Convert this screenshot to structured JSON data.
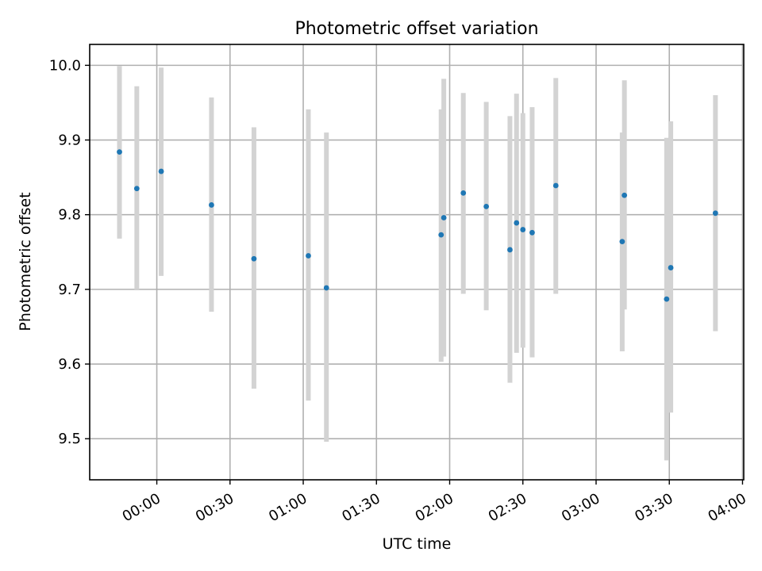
{
  "chart_data": {
    "type": "scatter",
    "title": "Photometric offset variation",
    "xlabel": "UTC time",
    "ylabel": "Photometric offset",
    "x_unit": "minutes after 00:00 UTC",
    "xlim": [
      -27.5,
      240.5
    ],
    "ylim": [
      9.445,
      10.028
    ],
    "xticks": [
      {
        "value": 0,
        "label": "00:00"
      },
      {
        "value": 30,
        "label": "00:30"
      },
      {
        "value": 60,
        "label": "01:00"
      },
      {
        "value": 90,
        "label": "01:30"
      },
      {
        "value": 120,
        "label": "02:00"
      },
      {
        "value": 150,
        "label": "02:30"
      },
      {
        "value": 180,
        "label": "03:00"
      },
      {
        "value": 210,
        "label": "03:30"
      },
      {
        "value": 240,
        "label": "04:00"
      }
    ],
    "yticks": [
      {
        "value": 9.5,
        "label": "9.5"
      },
      {
        "value": 9.6,
        "label": "9.6"
      },
      {
        "value": 9.7,
        "label": "9.7"
      },
      {
        "value": 9.8,
        "label": "9.8"
      },
      {
        "value": 9.9,
        "label": "9.9"
      },
      {
        "value": 10.0,
        "label": "10.0"
      }
    ],
    "grid": true,
    "x_tick_rotation": -30,
    "point_color": "#1f77b4",
    "errorbar_color": "#d3d3d3",
    "points": [
      {
        "x": -15.3,
        "y": 9.884,
        "low": 9.768,
        "high": 9.999
      },
      {
        "x": -8.2,
        "y": 9.835,
        "low": 9.7,
        "high": 9.972
      },
      {
        "x": 1.8,
        "y": 9.858,
        "low": 9.718,
        "high": 9.997
      },
      {
        "x": 22.4,
        "y": 9.813,
        "low": 9.67,
        "high": 9.957
      },
      {
        "x": 39.8,
        "y": 9.741,
        "low": 9.567,
        "high": 9.917
      },
      {
        "x": 62.1,
        "y": 9.745,
        "low": 9.551,
        "high": 9.941
      },
      {
        "x": 69.5,
        "y": 9.702,
        "low": 9.496,
        "high": 9.91
      },
      {
        "x": 116.5,
        "y": 9.773,
        "low": 9.603,
        "high": 9.941
      },
      {
        "x": 117.6,
        "y": 9.796,
        "low": 9.61,
        "high": 9.982
      },
      {
        "x": 125.6,
        "y": 9.829,
        "low": 9.694,
        "high": 9.963
      },
      {
        "x": 135.0,
        "y": 9.811,
        "low": 9.672,
        "high": 9.951
      },
      {
        "x": 144.7,
        "y": 9.753,
        "low": 9.575,
        "high": 9.932
      },
      {
        "x": 147.4,
        "y": 9.789,
        "low": 9.615,
        "high": 9.962
      },
      {
        "x": 150.0,
        "y": 9.78,
        "low": 9.622,
        "high": 9.936
      },
      {
        "x": 153.8,
        "y": 9.776,
        "low": 9.609,
        "high": 9.944
      },
      {
        "x": 163.5,
        "y": 9.839,
        "low": 9.694,
        "high": 9.983
      },
      {
        "x": 190.7,
        "y": 9.764,
        "low": 9.617,
        "high": 9.91
      },
      {
        "x": 191.6,
        "y": 9.826,
        "low": 9.673,
        "high": 9.98
      },
      {
        "x": 208.9,
        "y": 9.687,
        "low": 9.471,
        "high": 9.903
      },
      {
        "x": 210.6,
        "y": 9.729,
        "low": 9.535,
        "high": 9.925
      },
      {
        "x": 228.9,
        "y": 9.802,
        "low": 9.644,
        "high": 9.96
      }
    ]
  }
}
